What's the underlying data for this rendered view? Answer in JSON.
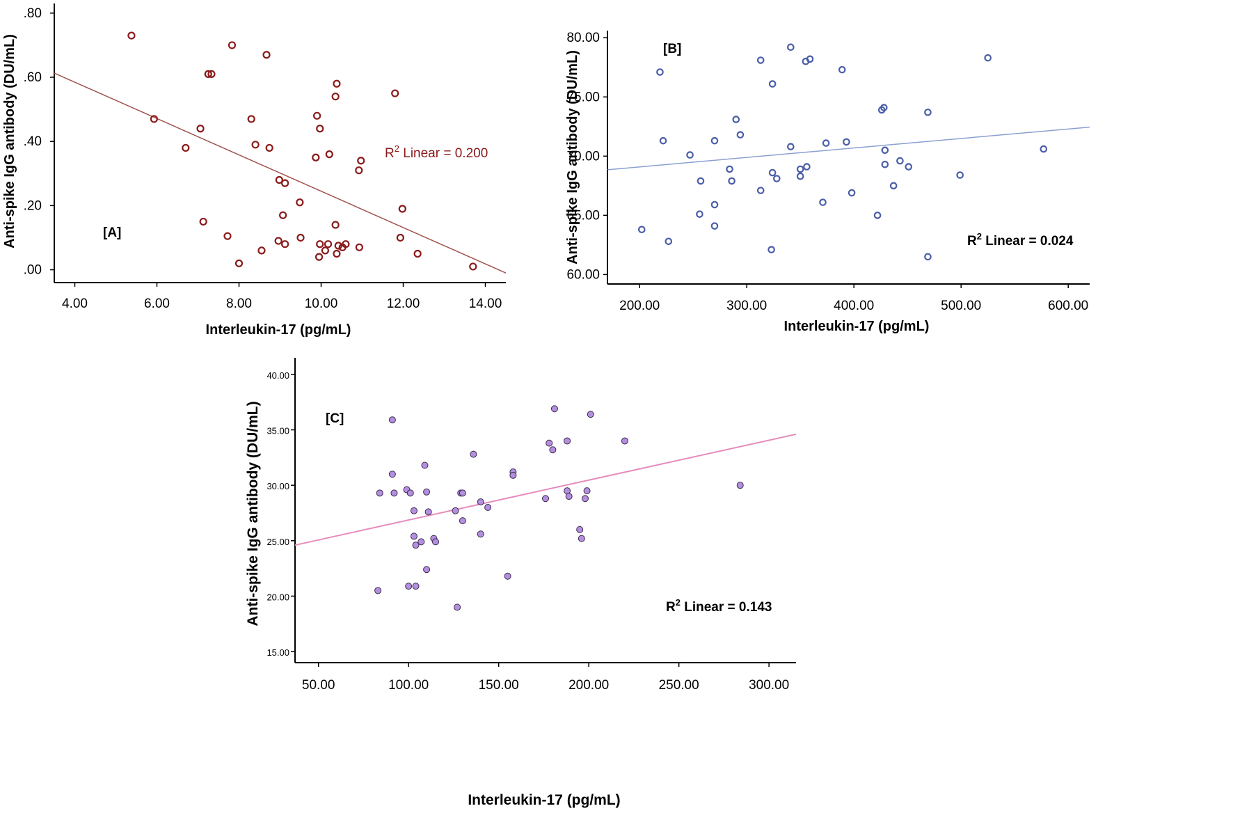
{
  "chart_data": [
    {
      "type": "scatter",
      "panel_label": "[A]",
      "xlabel": "Interleukin-17 (pg/mL)",
      "ylabel": "Anti-spike IgG antibody (DU/mL)",
      "xlim": [
        3.5,
        14.5
      ],
      "ylim": [
        -0.04,
        0.83
      ],
      "x_ticks": [
        4,
        6,
        8,
        10,
        12,
        14
      ],
      "x_tick_labels": [
        "4.00",
        "6.00",
        "8.00",
        "10.00",
        "12.00",
        "14.00"
      ],
      "y_ticks": [
        0,
        0.2,
        0.4,
        0.6,
        0.8
      ],
      "y_tick_labels": [
        ".00",
        ".20",
        ".40",
        ".60",
        ".80"
      ],
      "r2_prefix": "R",
      "r2_sup": "2",
      "r2_text": " Linear = 0.200",
      "marker": {
        "style": "hollow",
        "color": "#8b1a1a",
        "fill": "none"
      },
      "fit_line": {
        "color": "#a0524e",
        "x": [
          3.5,
          14.5
        ],
        "y": [
          0.613,
          -0.01
        ]
      },
      "points": [
        {
          "x": 5.38,
          "y": 0.73
        },
        {
          "x": 5.93,
          "y": 0.47
        },
        {
          "x": 6.7,
          "y": 0.38
        },
        {
          "x": 7.06,
          "y": 0.44
        },
        {
          "x": 7.13,
          "y": 0.15
        },
        {
          "x": 7.25,
          "y": 0.61
        },
        {
          "x": 7.33,
          "y": 0.61
        },
        {
          "x": 7.72,
          "y": 0.105
        },
        {
          "x": 7.83,
          "y": 0.7
        },
        {
          "x": 8.0,
          "y": 0.02
        },
        {
          "x": 8.3,
          "y": 0.47
        },
        {
          "x": 8.4,
          "y": 0.39
        },
        {
          "x": 8.55,
          "y": 0.06
        },
        {
          "x": 8.67,
          "y": 0.67
        },
        {
          "x": 8.74,
          "y": 0.38
        },
        {
          "x": 8.96,
          "y": 0.09
        },
        {
          "x": 8.98,
          "y": 0.28
        },
        {
          "x": 9.07,
          "y": 0.17
        },
        {
          "x": 9.12,
          "y": 0.27
        },
        {
          "x": 9.12,
          "y": 0.08
        },
        {
          "x": 9.48,
          "y": 0.21
        },
        {
          "x": 9.5,
          "y": 0.1
        },
        {
          "x": 9.87,
          "y": 0.35
        },
        {
          "x": 9.9,
          "y": 0.48
        },
        {
          "x": 9.95,
          "y": 0.04
        },
        {
          "x": 9.97,
          "y": 0.44
        },
        {
          "x": 9.97,
          "y": 0.08
        },
        {
          "x": 10.1,
          "y": 0.06
        },
        {
          "x": 10.17,
          "y": 0.08
        },
        {
          "x": 10.2,
          "y": 0.36
        },
        {
          "x": 10.35,
          "y": 0.54
        },
        {
          "x": 10.35,
          "y": 0.14
        },
        {
          "x": 10.38,
          "y": 0.58
        },
        {
          "x": 10.38,
          "y": 0.05
        },
        {
          "x": 10.42,
          "y": 0.075
        },
        {
          "x": 10.52,
          "y": 0.07
        },
        {
          "x": 10.6,
          "y": 0.08
        },
        {
          "x": 10.92,
          "y": 0.31
        },
        {
          "x": 10.93,
          "y": 0.07
        },
        {
          "x": 10.97,
          "y": 0.34
        },
        {
          "x": 11.8,
          "y": 0.55
        },
        {
          "x": 11.93,
          "y": 0.1
        },
        {
          "x": 11.98,
          "y": 0.19
        },
        {
          "x": 12.35,
          "y": 0.05
        },
        {
          "x": 13.7,
          "y": 0.01
        }
      ]
    },
    {
      "type": "scatter",
      "panel_label": "[B]",
      "xlabel": "Interleukin-17 (pg/mL)",
      "ylabel": "Anti-spike IgG antibody (DU/mL)",
      "xlim": [
        170,
        620
      ],
      "ylim": [
        59.2,
        80.6
      ],
      "x_ticks": [
        200,
        300,
        400,
        500,
        600
      ],
      "x_tick_labels": [
        "200.00",
        "300.00",
        "400.00",
        "500.00",
        "600.00"
      ],
      "y_ticks": [
        60,
        65,
        70,
        75,
        80
      ],
      "y_tick_labels": [
        "60.00",
        "65.00",
        "70.00",
        "75.00",
        "80.00"
      ],
      "r2_prefix": "R",
      "r2_sup": "2",
      "r2_text": " Linear = 0.024",
      "marker": {
        "style": "hollow",
        "color": "#4a5ea8",
        "fill": "none"
      },
      "fit_line": {
        "color": "#8aa0d0",
        "x": [
          170,
          620
        ],
        "y": [
          68.85,
          72.45
        ]
      },
      "points": [
        {
          "x": 202,
          "y": 63.8
        },
        {
          "x": 219,
          "y": 77.1
        },
        {
          "x": 222,
          "y": 71.3
        },
        {
          "x": 227,
          "y": 62.8
        },
        {
          "x": 247,
          "y": 70.1
        },
        {
          "x": 256,
          "y": 65.1
        },
        {
          "x": 257,
          "y": 67.9
        },
        {
          "x": 270,
          "y": 71.3
        },
        {
          "x": 270,
          "y": 65.9
        },
        {
          "x": 270,
          "y": 64.1
        },
        {
          "x": 284,
          "y": 68.9
        },
        {
          "x": 286,
          "y": 67.9
        },
        {
          "x": 290,
          "y": 73.1
        },
        {
          "x": 294,
          "y": 71.8
        },
        {
          "x": 313,
          "y": 78.1
        },
        {
          "x": 313,
          "y": 67.1
        },
        {
          "x": 323,
          "y": 62.1
        },
        {
          "x": 324,
          "y": 76.1
        },
        {
          "x": 324,
          "y": 68.6
        },
        {
          "x": 328,
          "y": 68.1
        },
        {
          "x": 341,
          "y": 79.2
        },
        {
          "x": 341,
          "y": 70.8
        },
        {
          "x": 350,
          "y": 68.9
        },
        {
          "x": 350,
          "y": 68.3
        },
        {
          "x": 355,
          "y": 78.0
        },
        {
          "x": 356,
          "y": 69.1
        },
        {
          "x": 359,
          "y": 78.2
        },
        {
          "x": 371,
          "y": 66.1
        },
        {
          "x": 374,
          "y": 71.1
        },
        {
          "x": 389,
          "y": 77.3
        },
        {
          "x": 393,
          "y": 71.2
        },
        {
          "x": 398,
          "y": 66.9
        },
        {
          "x": 422,
          "y": 65.0
        },
        {
          "x": 426,
          "y": 73.9
        },
        {
          "x": 428,
          "y": 74.1
        },
        {
          "x": 429,
          "y": 70.5
        },
        {
          "x": 429,
          "y": 69.3
        },
        {
          "x": 437,
          "y": 67.5
        },
        {
          "x": 443,
          "y": 69.6
        },
        {
          "x": 451,
          "y": 69.1
        },
        {
          "x": 469,
          "y": 73.7
        },
        {
          "x": 469,
          "y": 61.5
        },
        {
          "x": 499,
          "y": 68.4
        },
        {
          "x": 525,
          "y": 78.3
        },
        {
          "x": 577,
          "y": 70.6
        }
      ]
    },
    {
      "type": "scatter",
      "panel_label": "[C]",
      "xlabel": "Interleukin-17 (pg/mL)",
      "ylabel": "Anti-spike IgG antibody (DU/mL)",
      "xlim": [
        37,
        315
      ],
      "ylim": [
        14.0,
        41.5
      ],
      "x_ticks": [
        50,
        100,
        150,
        200,
        250,
        300
      ],
      "x_tick_labels": [
        "50.00",
        "100.00",
        "150.00",
        "200.00",
        "250.00",
        "300.00"
      ],
      "y_ticks": [
        15,
        20,
        25,
        30,
        35,
        40
      ],
      "y_tick_labels": [
        "15.00",
        "20.00",
        "25.00",
        "30.00",
        "35.00",
        "40.00"
      ],
      "r2_prefix": "R",
      "r2_sup": "2",
      "r2_text": " Linear = 0.143",
      "marker": {
        "style": "filled",
        "color": "#3a2a4a",
        "fill": "#b48fe0"
      },
      "fit_line": {
        "color": "#e58cbc",
        "x": [
          37,
          315
        ],
        "y": [
          24.6,
          34.6
        ]
      },
      "points": [
        {
          "x": 83,
          "y": 20.5
        },
        {
          "x": 84,
          "y": 29.3
        },
        {
          "x": 91,
          "y": 35.9
        },
        {
          "x": 91,
          "y": 31.0
        },
        {
          "x": 92,
          "y": 29.3
        },
        {
          "x": 99,
          "y": 29.6
        },
        {
          "x": 100,
          "y": 20.9
        },
        {
          "x": 101,
          "y": 29.3
        },
        {
          "x": 103,
          "y": 27.7
        },
        {
          "x": 103,
          "y": 25.4
        },
        {
          "x": 104,
          "y": 24.6
        },
        {
          "x": 104,
          "y": 20.9
        },
        {
          "x": 107,
          "y": 24.9
        },
        {
          "x": 109,
          "y": 31.8
        },
        {
          "x": 110,
          "y": 29.4
        },
        {
          "x": 110,
          "y": 22.4
        },
        {
          "x": 111,
          "y": 27.6
        },
        {
          "x": 114,
          "y": 25.2
        },
        {
          "x": 115,
          "y": 24.9
        },
        {
          "x": 126,
          "y": 27.7
        },
        {
          "x": 127,
          "y": 19.0
        },
        {
          "x": 129,
          "y": 29.3
        },
        {
          "x": 130,
          "y": 29.3
        },
        {
          "x": 130,
          "y": 26.8
        },
        {
          "x": 136,
          "y": 32.8
        },
        {
          "x": 140,
          "y": 28.5
        },
        {
          "x": 140,
          "y": 25.6
        },
        {
          "x": 144,
          "y": 28.0
        },
        {
          "x": 155,
          "y": 21.8
        },
        {
          "x": 158,
          "y": 31.2
        },
        {
          "x": 158,
          "y": 30.9
        },
        {
          "x": 176,
          "y": 28.8
        },
        {
          "x": 178,
          "y": 33.8
        },
        {
          "x": 180,
          "y": 33.2
        },
        {
          "x": 181,
          "y": 36.9
        },
        {
          "x": 188,
          "y": 34.0
        },
        {
          "x": 188,
          "y": 29.5
        },
        {
          "x": 189,
          "y": 29.0
        },
        {
          "x": 195,
          "y": 26.0
        },
        {
          "x": 196,
          "y": 25.2
        },
        {
          "x": 198,
          "y": 28.8
        },
        {
          "x": 199,
          "y": 29.5
        },
        {
          "x": 201,
          "y": 36.4
        },
        {
          "x": 220,
          "y": 34.0
        },
        {
          "x": 284,
          "y": 30.0
        }
      ]
    }
  ]
}
